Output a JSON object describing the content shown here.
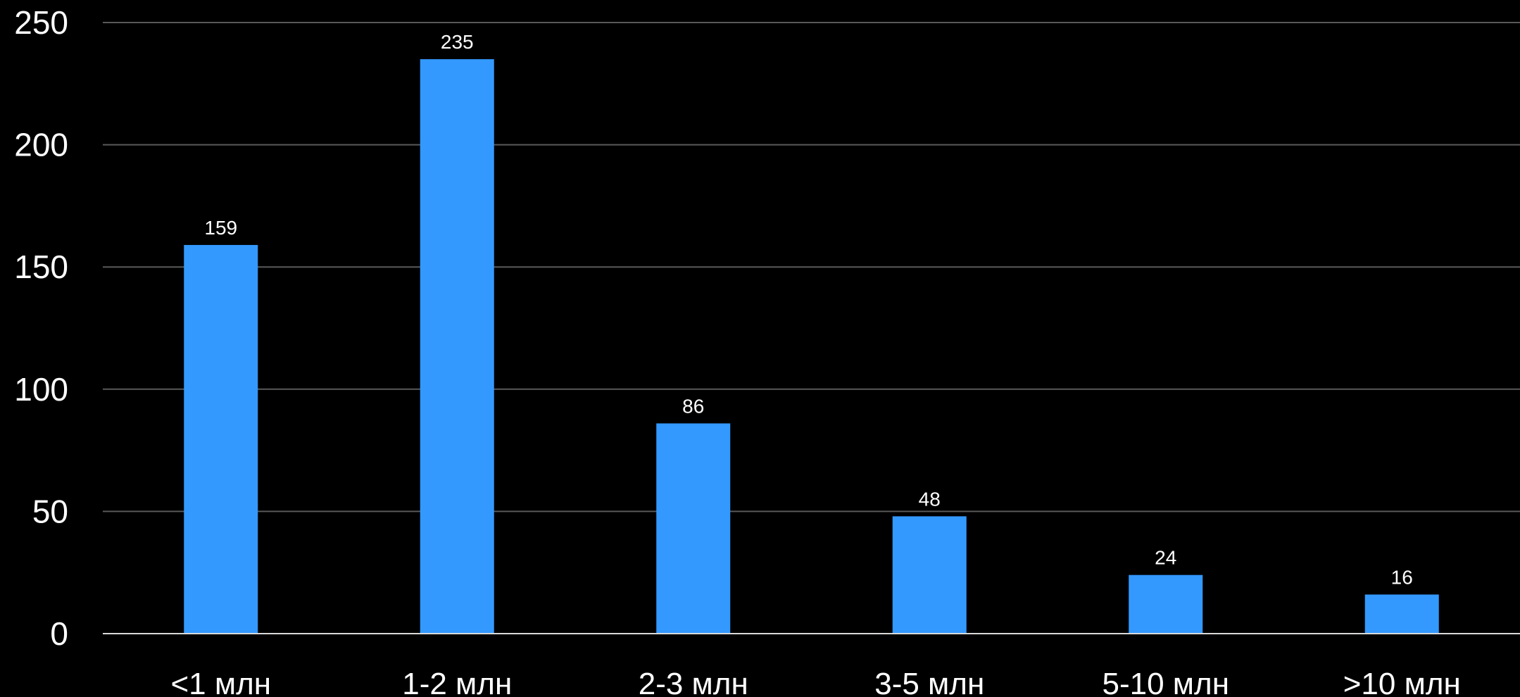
{
  "chart_data": {
    "type": "bar",
    "categories": [
      "<1 млн",
      "1-2 млн",
      "2-3 млн",
      "3-5 млн",
      "5-10 млн",
      ">10 млн"
    ],
    "values": [
      159,
      235,
      86,
      48,
      24,
      16
    ],
    "title": "",
    "xlabel": "",
    "ylabel": "",
    "ylim": [
      0,
      250
    ],
    "yticks": [
      0,
      50,
      100,
      150,
      200,
      250
    ],
    "grid": true,
    "legend": "none",
    "data_labels": true,
    "colors": {
      "background": "#000000",
      "bar": "#3399ff",
      "gridline": "#595959",
      "axis": "#d9d9d9",
      "text": "#ffffff"
    }
  }
}
